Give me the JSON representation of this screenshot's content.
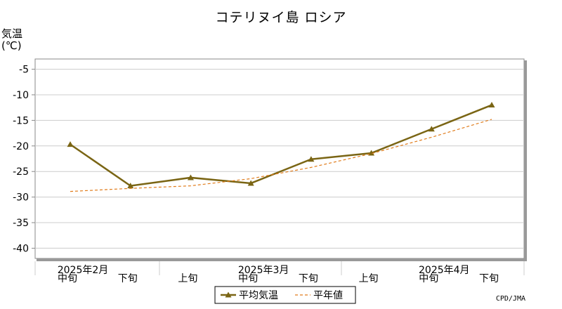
{
  "page": {
    "title": "コテリヌイ島 ロシア",
    "credit": "CPD/JMA"
  },
  "colors": {
    "avg_line": "#7a6514",
    "normal_line": "#e07b1a",
    "grid": "#cccccc",
    "axis": "#888888"
  },
  "chart_data": {
    "type": "line",
    "title": "コテリヌイ島 ロシア",
    "ylabel_line1": "気温",
    "ylabel_line2": "(℃)",
    "ylim": [
      -42,
      -3
    ],
    "yticks": [
      -5,
      -10,
      -15,
      -20,
      -25,
      -30,
      -35,
      -40
    ],
    "grid": true,
    "legend_position": "bottom-center",
    "categories": [
      "中旬",
      "下旬",
      "上旬",
      "中旬",
      "下旬",
      "上旬",
      "中旬",
      "下旬"
    ],
    "month_labels": [
      {
        "label": "2025年2月",
        "index": 0
      },
      {
        "label": "2025年3月",
        "index": 3
      },
      {
        "label": "2025年4月",
        "index": 6
      }
    ],
    "series": [
      {
        "name": "平均気温",
        "style": "solid-triangle",
        "values": [
          -19.7,
          -27.8,
          -26.2,
          -27.3,
          -22.6,
          -21.4,
          -16.7,
          -12.0
        ]
      },
      {
        "name": "平年値",
        "style": "dashed",
        "values": [
          -28.9,
          -28.3,
          -27.8,
          -26.4,
          -24.2,
          -21.5,
          -18.3,
          -14.8
        ]
      }
    ]
  }
}
